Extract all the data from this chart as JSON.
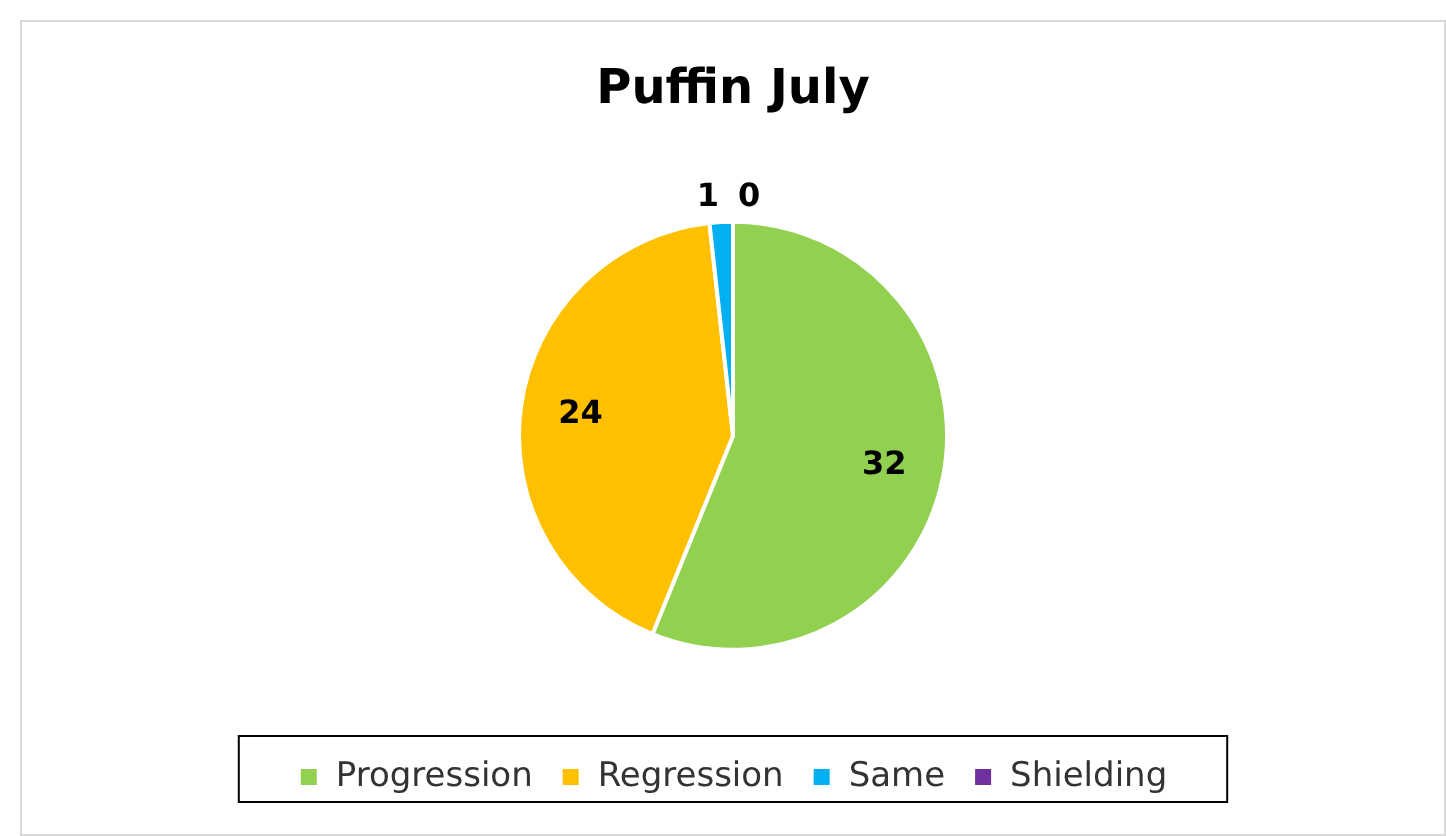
{
  "chart_data": {
    "type": "pie",
    "title": "Puffin July",
    "categories": [
      "Progression",
      "Regression",
      "Same",
      "Shielding"
    ],
    "values": [
      32,
      24,
      1,
      0
    ],
    "colors": [
      "#92d050",
      "#ffc000",
      "#00b0f0",
      "#7030a0"
    ],
    "value_labels": [
      "32",
      "24",
      "1",
      "0"
    ],
    "legend": "bottom"
  }
}
